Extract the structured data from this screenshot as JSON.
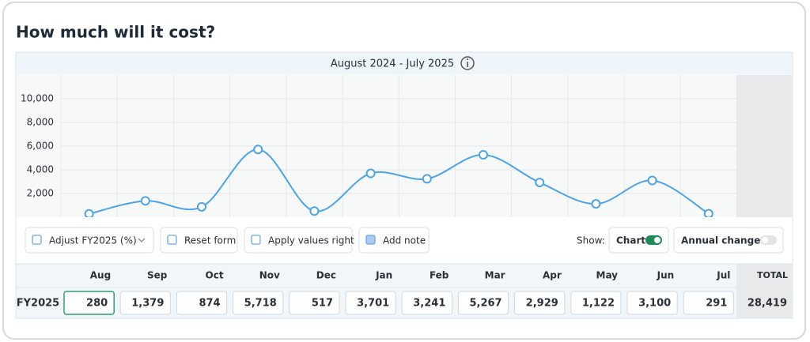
{
  "page": {
    "title": "How much will it cost?"
  },
  "chart_data": {
    "type": "line",
    "title": "August 2024 - July 2025",
    "categories": [
      "Aug",
      "Sep",
      "Oct",
      "Nov",
      "Dec",
      "Jan",
      "Feb",
      "Mar",
      "Apr",
      "May",
      "Jun",
      "Jul"
    ],
    "series": [
      {
        "name": "FY2025",
        "color": "#4da3e8",
        "values": [
          280,
          1379,
          874,
          5718,
          517,
          3701,
          3241,
          5267,
          2929,
          1122,
          3100,
          291
        ],
        "value_labels": [
          "280",
          "1,379",
          "874",
          "5,718",
          "517",
          "3,701",
          "3,241",
          "5,267",
          "2,929",
          "1,122",
          "3,100",
          "291"
        ]
      }
    ],
    "ylim": [
      0,
      12000
    ],
    "yticks": [
      {
        "value": 2000,
        "label": "2,000"
      },
      {
        "value": 4000,
        "label": "4,000"
      },
      {
        "value": 6000,
        "label": "6,000"
      },
      {
        "value": 8000,
        "label": "8,000"
      },
      {
        "value": 10000,
        "label": "10,000"
      }
    ],
    "grid": true
  },
  "toolbar": {
    "buttons": [
      "Adjust FY2025 (%)",
      "Reset form",
      "Apply values right",
      "Add note"
    ],
    "show_label": "Show:",
    "toggles": [
      {
        "label": "Chart",
        "on": true
      },
      {
        "label": "Annual change %",
        "on": false
      }
    ]
  },
  "table": {
    "total_header": "TOTAL",
    "total": {
      "value": 28419,
      "label": "28,419"
    }
  }
}
